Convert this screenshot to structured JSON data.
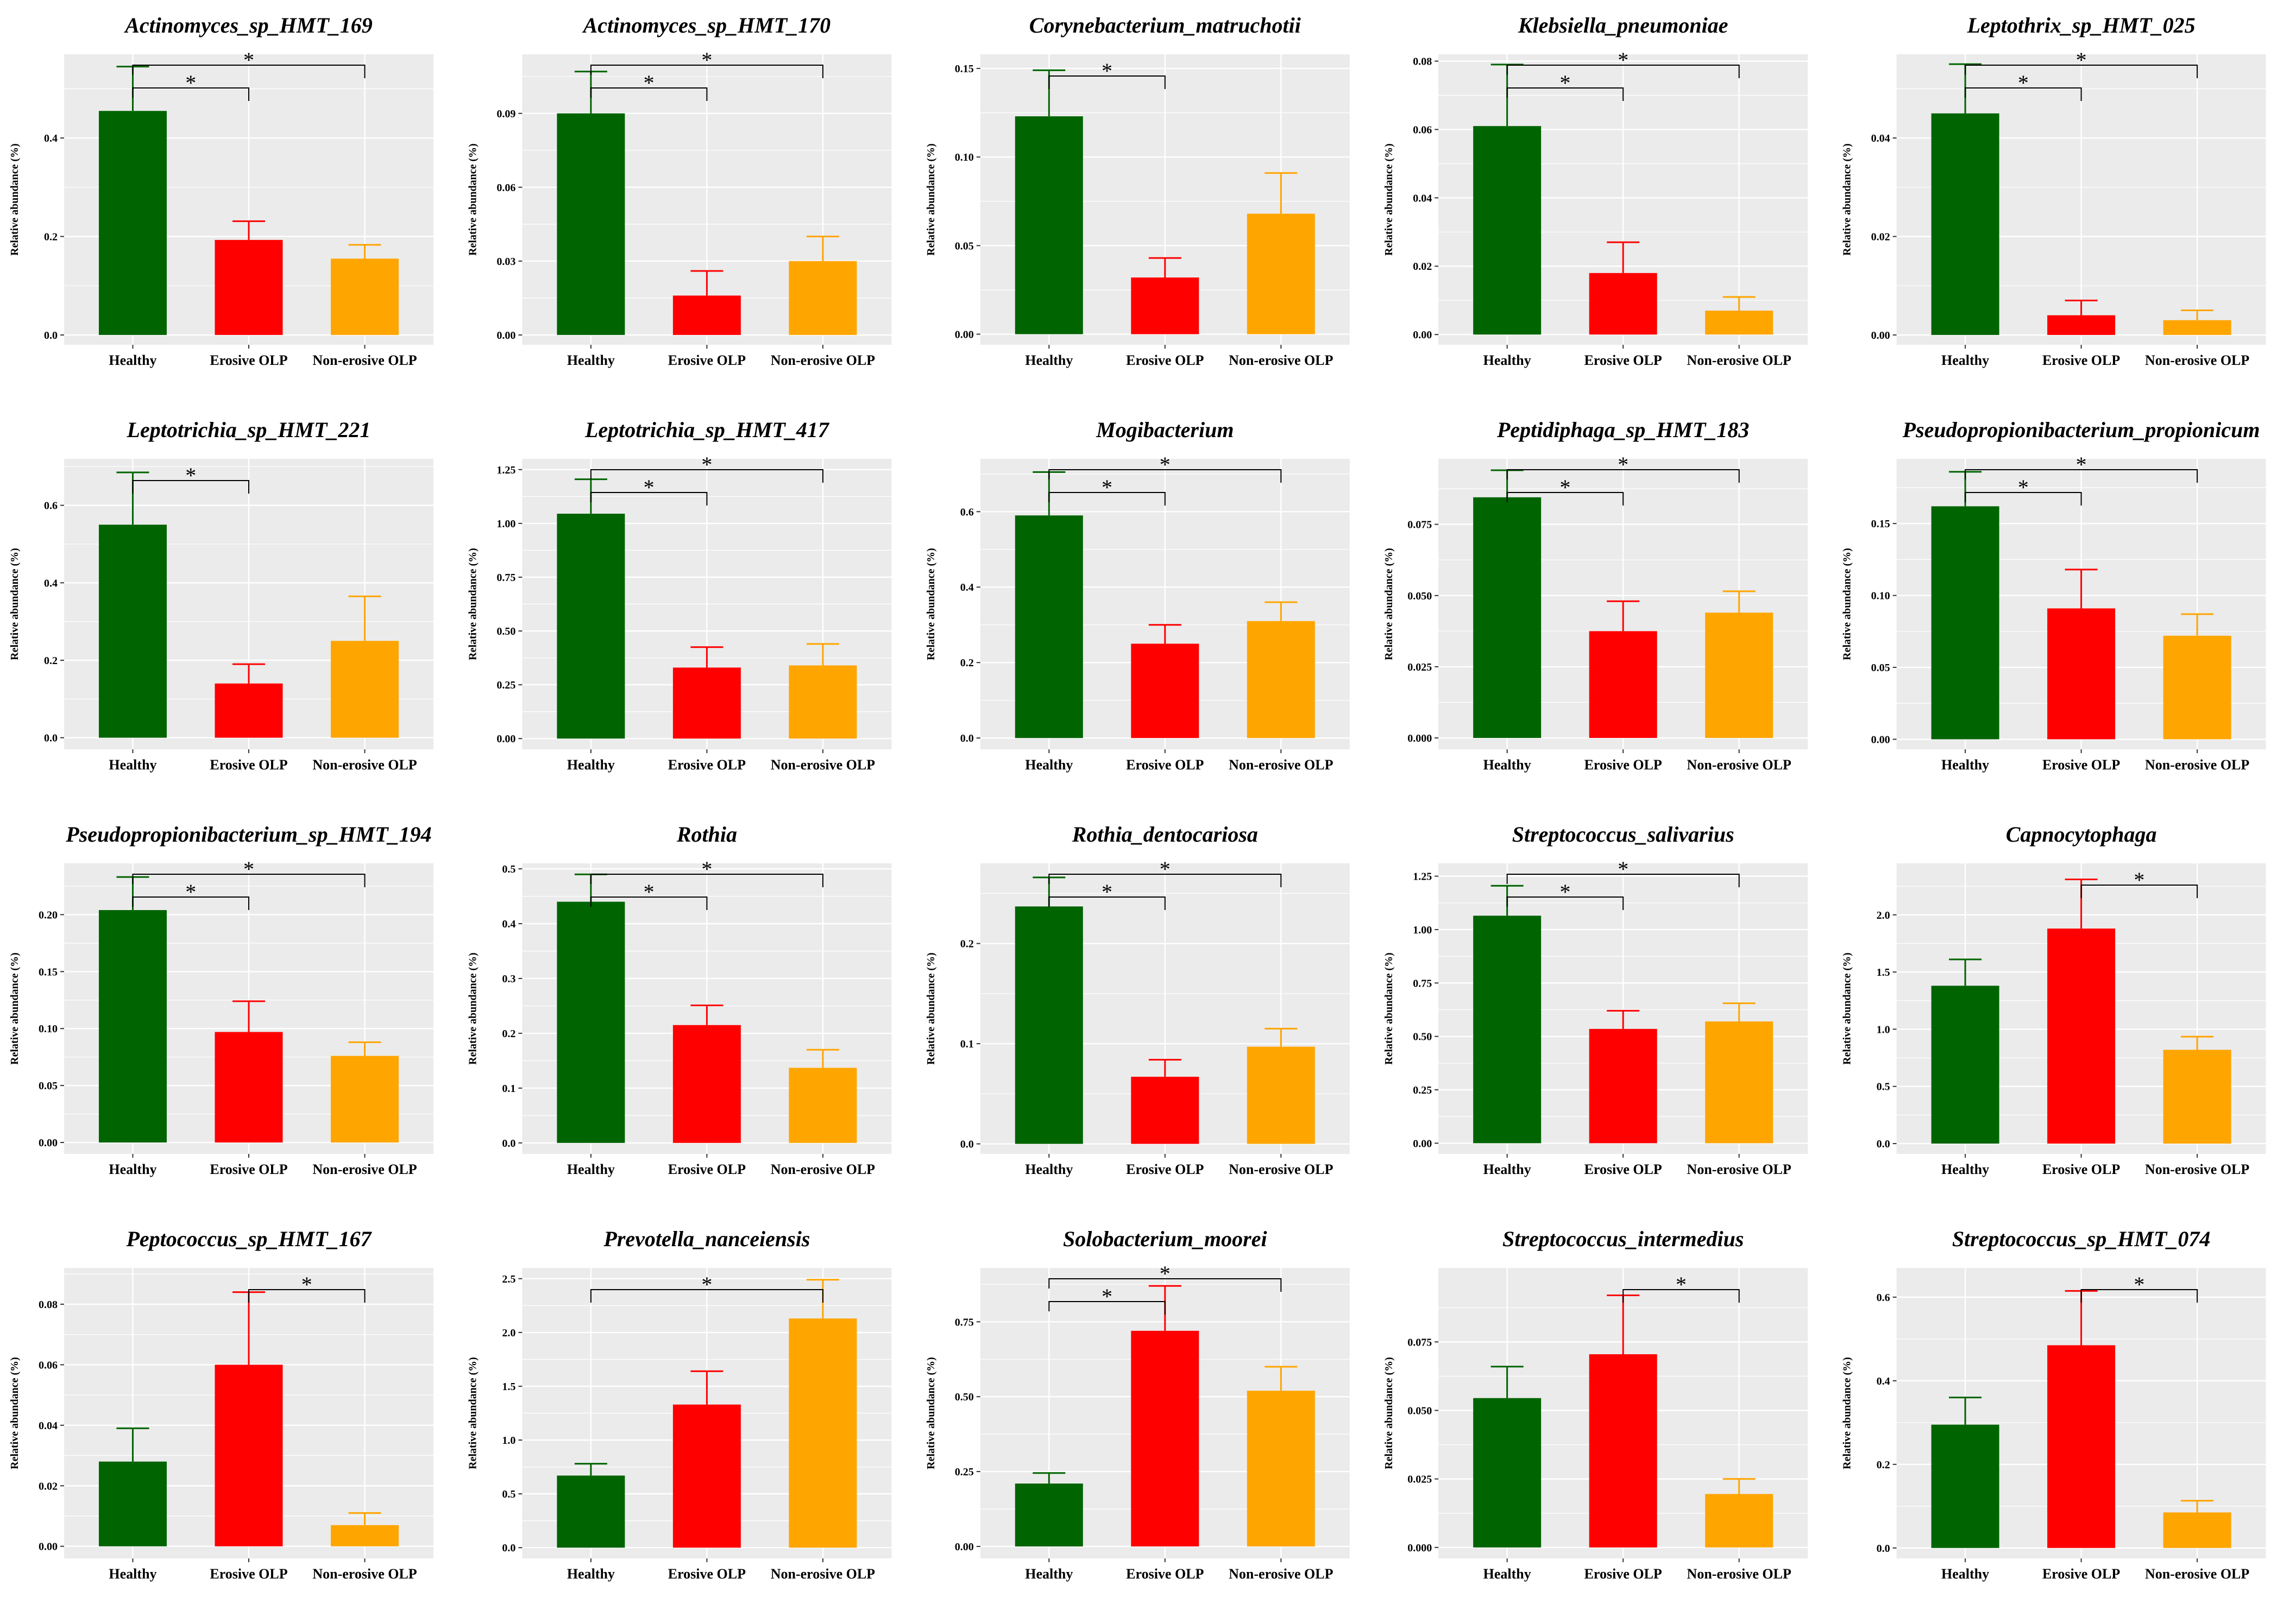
{
  "figure": {
    "colors": {
      "Healthy": "#006400",
      "Erosive OLP": "#ff0000",
      "Non-erosive OLP": "#ffa500",
      "panel_bg": "#ebebeb",
      "grid": "#ffffff"
    }
  },
  "chart_data": [
    {
      "type": "bar",
      "title": "Actinomyces_sp_HMT_169",
      "ylabel": "Relative abundance (%)",
      "categories": [
        "Healthy",
        "Erosive OLP",
        "Non-erosive OLP"
      ],
      "values": [
        0.455,
        0.193,
        0.155
      ],
      "errors": [
        0.09,
        0.038,
        0.028
      ],
      "ylim": [
        -0.02,
        0.57
      ],
      "yticks": [
        0.0,
        0.2,
        0.4
      ],
      "ytick_labels": [
        "0.0",
        "0.2",
        "0.4"
      ],
      "significance": [
        {
          "from": 0,
          "to": 1,
          "label": "*"
        },
        {
          "from": 0,
          "to": 2,
          "label": "*"
        }
      ]
    },
    {
      "type": "bar",
      "title": "Actinomyces_sp_HMT_170",
      "ylabel": "Relative abundance (%)",
      "categories": [
        "Healthy",
        "Erosive OLP",
        "Non-erosive OLP"
      ],
      "values": [
        0.09,
        0.016,
        0.03
      ],
      "errors": [
        0.017,
        0.01,
        0.01
      ],
      "ylim": [
        -0.004,
        0.114
      ],
      "yticks": [
        0.0,
        0.03,
        0.06,
        0.09
      ],
      "ytick_labels": [
        "0.00",
        "0.03",
        "0.06",
        "0.09"
      ],
      "significance": [
        {
          "from": 0,
          "to": 1,
          "label": "*"
        },
        {
          "from": 0,
          "to": 2,
          "label": "*"
        }
      ]
    },
    {
      "type": "bar",
      "title": "Corynebacterium_matruchotii",
      "ylabel": "Relative abundance (%)",
      "categories": [
        "Healthy",
        "Erosive OLP",
        "Non-erosive OLP"
      ],
      "values": [
        0.123,
        0.032,
        0.068
      ],
      "errors": [
        0.026,
        0.011,
        0.023
      ],
      "ylim": [
        -0.006,
        0.158
      ],
      "yticks": [
        0.0,
        0.05,
        0.1,
        0.15
      ],
      "ytick_labels": [
        "0.00",
        "0.05",
        "0.10",
        "0.15"
      ],
      "significance": [
        {
          "from": 0,
          "to": 1,
          "label": "*"
        }
      ]
    },
    {
      "type": "bar",
      "title": "Klebsiella_pneumoniae",
      "ylabel": "Relative abundance (%)",
      "categories": [
        "Healthy",
        "Erosive OLP",
        "Non-erosive OLP"
      ],
      "values": [
        0.061,
        0.018,
        0.007
      ],
      "errors": [
        0.018,
        0.009,
        0.004
      ],
      "ylim": [
        -0.003,
        0.082
      ],
      "yticks": [
        0.0,
        0.02,
        0.04,
        0.06,
        0.08
      ],
      "ytick_labels": [
        "0.00",
        "0.02",
        "0.04",
        "0.06",
        "0.08"
      ],
      "significance": [
        {
          "from": 0,
          "to": 1,
          "label": "*"
        },
        {
          "from": 0,
          "to": 2,
          "label": "*"
        }
      ]
    },
    {
      "type": "bar",
      "title": "Leptothrix_sp_HMT_025",
      "ylabel": "Relative abundance (%)",
      "categories": [
        "Healthy",
        "Erosive OLP",
        "Non-erosive OLP"
      ],
      "values": [
        0.045,
        0.004,
        0.003
      ],
      "errors": [
        0.01,
        0.003,
        0.002
      ],
      "ylim": [
        -0.002,
        0.057
      ],
      "yticks": [
        0.0,
        0.02,
        0.04
      ],
      "ytick_labels": [
        "0.00",
        "0.02",
        "0.04"
      ],
      "significance": [
        {
          "from": 0,
          "to": 1,
          "label": "*"
        },
        {
          "from": 0,
          "to": 2,
          "label": "*"
        }
      ]
    },
    {
      "type": "bar",
      "title": "Leptotrichia_sp_HMT_221",
      "ylabel": "Relative abundance (%)",
      "categories": [
        "Healthy",
        "Erosive OLP",
        "Non-erosive OLP"
      ],
      "values": [
        0.55,
        0.14,
        0.25
      ],
      "errors": [
        0.135,
        0.05,
        0.115
      ],
      "ylim": [
        -0.03,
        0.72
      ],
      "yticks": [
        0.0,
        0.2,
        0.4,
        0.6
      ],
      "ytick_labels": [
        "0.0",
        "0.2",
        "0.4",
        "0.6"
      ],
      "significance": [
        {
          "from": 0,
          "to": 1,
          "label": "*"
        }
      ]
    },
    {
      "type": "bar",
      "title": "Leptotrichia_sp_HMT_417",
      "ylabel": "Relative abundance (%)",
      "categories": [
        "Healthy",
        "Erosive OLP",
        "Non-erosive OLP"
      ],
      "values": [
        1.045,
        0.33,
        0.34
      ],
      "errors": [
        0.16,
        0.095,
        0.1
      ],
      "ylim": [
        -0.05,
        1.3
      ],
      "yticks": [
        0.0,
        0.25,
        0.5,
        0.75,
        1.0,
        1.25
      ],
      "ytick_labels": [
        "0.00",
        "0.25",
        "0.50",
        "0.75",
        "1.00",
        "1.25"
      ],
      "significance": [
        {
          "from": 0,
          "to": 1,
          "label": "*"
        },
        {
          "from": 0,
          "to": 2,
          "label": "*"
        }
      ]
    },
    {
      "type": "bar",
      "title": "Mogibacterium",
      "ylabel": "Relative abundance (%)",
      "categories": [
        "Healthy",
        "Erosive OLP",
        "Non-erosive OLP"
      ],
      "values": [
        0.59,
        0.25,
        0.31
      ],
      "errors": [
        0.115,
        0.05,
        0.05
      ],
      "ylim": [
        -0.03,
        0.74
      ],
      "yticks": [
        0.0,
        0.2,
        0.4,
        0.6
      ],
      "ytick_labels": [
        "0.0",
        "0.2",
        "0.4",
        "0.6"
      ],
      "significance": [
        {
          "from": 0,
          "to": 1,
          "label": "*"
        },
        {
          "from": 0,
          "to": 2,
          "label": "*"
        }
      ]
    },
    {
      "type": "bar",
      "title": "Peptidiphaga_sp_HMT_183",
      "ylabel": "Relative abundance (%)",
      "categories": [
        "Healthy",
        "Erosive OLP",
        "Non-erosive OLP"
      ],
      "values": [
        0.0845,
        0.0375,
        0.044
      ],
      "errors": [
        0.0095,
        0.0105,
        0.0075
      ],
      "ylim": [
        -0.004,
        0.098
      ],
      "yticks": [
        0.0,
        0.025,
        0.05,
        0.075
      ],
      "ytick_labels": [
        "0.000",
        "0.025",
        "0.050",
        "0.075"
      ],
      "significance": [
        {
          "from": 0,
          "to": 1,
          "label": "*"
        },
        {
          "from": 0,
          "to": 2,
          "label": "*"
        }
      ]
    },
    {
      "type": "bar",
      "title": "Pseudopropionibacterium_propionicum",
      "ylabel": "Relative abundance (%)",
      "categories": [
        "Healthy",
        "Erosive OLP",
        "Non-erosive OLP"
      ],
      "values": [
        0.162,
        0.091,
        0.072
      ],
      "errors": [
        0.024,
        0.027,
        0.015
      ],
      "ylim": [
        -0.007,
        0.195
      ],
      "yticks": [
        0.0,
        0.05,
        0.1,
        0.15
      ],
      "ytick_labels": [
        "0.00",
        "0.05",
        "0.10",
        "0.15"
      ],
      "significance": [
        {
          "from": 0,
          "to": 1,
          "label": "*"
        },
        {
          "from": 0,
          "to": 2,
          "label": "*"
        }
      ]
    },
    {
      "type": "bar",
      "title": "Pseudopropionibacterium_sp_HMT_194",
      "ylabel": "Relative abundance (%)",
      "categories": [
        "Healthy",
        "Erosive OLP",
        "Non-erosive OLP"
      ],
      "values": [
        0.204,
        0.097,
        0.076
      ],
      "errors": [
        0.029,
        0.027,
        0.012
      ],
      "ylim": [
        -0.01,
        0.245
      ],
      "yticks": [
        0.0,
        0.05,
        0.1,
        0.15,
        0.2
      ],
      "ytick_labels": [
        "0.00",
        "0.05",
        "0.10",
        "0.15",
        "0.20"
      ],
      "significance": [
        {
          "from": 0,
          "to": 1,
          "label": "*"
        },
        {
          "from": 0,
          "to": 2,
          "label": "*"
        }
      ]
    },
    {
      "type": "bar",
      "title": "Rothia",
      "ylabel": "Relative abundance (%)",
      "categories": [
        "Healthy",
        "Erosive OLP",
        "Non-erosive OLP"
      ],
      "values": [
        0.44,
        0.215,
        0.137
      ],
      "errors": [
        0.05,
        0.036,
        0.033
      ],
      "ylim": [
        -0.02,
        0.51
      ],
      "yticks": [
        0.0,
        0.1,
        0.2,
        0.3,
        0.4,
        0.5
      ],
      "ytick_labels": [
        "0.0",
        "0.1",
        "0.2",
        "0.3",
        "0.4",
        "0.5"
      ],
      "significance": [
        {
          "from": 0,
          "to": 1,
          "label": "*"
        },
        {
          "from": 0,
          "to": 2,
          "label": "*"
        }
      ]
    },
    {
      "type": "bar",
      "title": "Rothia_dentocariosa",
      "ylabel": "Relative abundance (%)",
      "categories": [
        "Healthy",
        "Erosive OLP",
        "Non-erosive OLP"
      ],
      "values": [
        0.237,
        0.067,
        0.097
      ],
      "errors": [
        0.029,
        0.017,
        0.018
      ],
      "ylim": [
        -0.01,
        0.28
      ],
      "yticks": [
        0.0,
        0.1,
        0.2
      ],
      "ytick_labels": [
        "0.0",
        "0.1",
        "0.2"
      ],
      "significance": [
        {
          "from": 0,
          "to": 1,
          "label": "*"
        },
        {
          "from": 0,
          "to": 2,
          "label": "*"
        }
      ]
    },
    {
      "type": "bar",
      "title": "Streptococcus_salivarius",
      "ylabel": "Relative abundance (%)",
      "categories": [
        "Healthy",
        "Erosive OLP",
        "Non-erosive OLP"
      ],
      "values": [
        1.065,
        0.535,
        0.57
      ],
      "errors": [
        0.14,
        0.085,
        0.085
      ],
      "ylim": [
        -0.05,
        1.31
      ],
      "yticks": [
        0.0,
        0.25,
        0.5,
        0.75,
        1.0,
        1.25
      ],
      "ytick_labels": [
        "0.00",
        "0.25",
        "0.50",
        "0.75",
        "1.00",
        "1.25"
      ],
      "significance": [
        {
          "from": 0,
          "to": 1,
          "label": "*"
        },
        {
          "from": 0,
          "to": 2,
          "label": "*"
        }
      ]
    },
    {
      "type": "bar",
      "title": "Capnocytophaga",
      "ylabel": "Relative abundance (%)",
      "categories": [
        "Healthy",
        "Erosive OLP",
        "Non-erosive OLP"
      ],
      "values": [
        1.38,
        1.88,
        0.82
      ],
      "errors": [
        0.23,
        0.43,
        0.115
      ],
      "ylim": [
        -0.09,
        2.45
      ],
      "yticks": [
        0.0,
        0.5,
        1.0,
        1.5,
        2.0
      ],
      "ytick_labels": [
        "0.0",
        "0.5",
        "1.0",
        "1.5",
        "2.0"
      ],
      "significance": [
        {
          "from": 1,
          "to": 2,
          "label": "*"
        }
      ]
    },
    {
      "type": "bar",
      "title": "Peptococcus_sp_HMT_167",
      "ylabel": "Relative abundance (%)",
      "categories": [
        "Healthy",
        "Erosive OLP",
        "Non-erosive OLP"
      ],
      "values": [
        0.028,
        0.06,
        0.007
      ],
      "errors": [
        0.011,
        0.024,
        0.004
      ],
      "ylim": [
        -0.004,
        0.092
      ],
      "yticks": [
        0.0,
        0.02,
        0.04,
        0.06,
        0.08
      ],
      "ytick_labels": [
        "0.00",
        "0.02",
        "0.04",
        "0.06",
        "0.08"
      ],
      "significance": [
        {
          "from": 1,
          "to": 2,
          "label": "*"
        }
      ]
    },
    {
      "type": "bar",
      "title": "Prevotella_nanceiensis",
      "ylabel": "Relative abundance (%)",
      "categories": [
        "Healthy",
        "Erosive OLP",
        "Non-erosive OLP"
      ],
      "values": [
        0.67,
        1.33,
        2.13
      ],
      "errors": [
        0.11,
        0.31,
        0.36
      ],
      "ylim": [
        -0.1,
        2.6
      ],
      "yticks": [
        0.0,
        0.5,
        1.0,
        1.5,
        2.0,
        2.5
      ],
      "ytick_labels": [
        "0.0",
        "0.5",
        "1.0",
        "1.5",
        "2.0",
        "2.5"
      ],
      "significance": [
        {
          "from": 0,
          "to": 2,
          "label": "*"
        }
      ]
    },
    {
      "type": "bar",
      "title": "Solobacterium_moorei",
      "ylabel": "Relative abundance (%)",
      "categories": [
        "Healthy",
        "Erosive OLP",
        "Non-erosive OLP"
      ],
      "values": [
        0.21,
        0.72,
        0.52
      ],
      "errors": [
        0.035,
        0.15,
        0.08
      ],
      "ylim": [
        -0.04,
        0.93
      ],
      "yticks": [
        0.0,
        0.25,
        0.5,
        0.75
      ],
      "ytick_labels": [
        "0.00",
        "0.25",
        "0.50",
        "0.75"
      ],
      "significance": [
        {
          "from": 0,
          "to": 1,
          "label": "*"
        },
        {
          "from": 0,
          "to": 2,
          "label": "*"
        }
      ]
    },
    {
      "type": "bar",
      "title": "Streptococcus_intermedius",
      "ylabel": "Relative abundance (%)",
      "categories": [
        "Healthy",
        "Erosive OLP",
        "Non-erosive OLP"
      ],
      "values": [
        0.0545,
        0.0705,
        0.0195
      ],
      "errors": [
        0.0115,
        0.0215,
        0.0055
      ],
      "ylim": [
        -0.004,
        0.102
      ],
      "yticks": [
        0.0,
        0.025,
        0.05,
        0.075
      ],
      "ytick_labels": [
        "0.000",
        "0.025",
        "0.050",
        "0.075"
      ],
      "significance": [
        {
          "from": 1,
          "to": 2,
          "label": "*"
        }
      ]
    },
    {
      "type": "bar",
      "title": "Streptococcus_sp_HMT_074",
      "ylabel": "Relative abundance (%)",
      "categories": [
        "Healthy",
        "Erosive OLP",
        "Non-erosive OLP"
      ],
      "values": [
        0.295,
        0.485,
        0.085
      ],
      "errors": [
        0.065,
        0.13,
        0.028
      ],
      "ylim": [
        -0.025,
        0.67
      ],
      "yticks": [
        0.0,
        0.2,
        0.4,
        0.6
      ],
      "ytick_labels": [
        "0.0",
        "0.2",
        "0.4",
        "0.6"
      ],
      "significance": [
        {
          "from": 1,
          "to": 2,
          "label": "*"
        }
      ]
    }
  ]
}
